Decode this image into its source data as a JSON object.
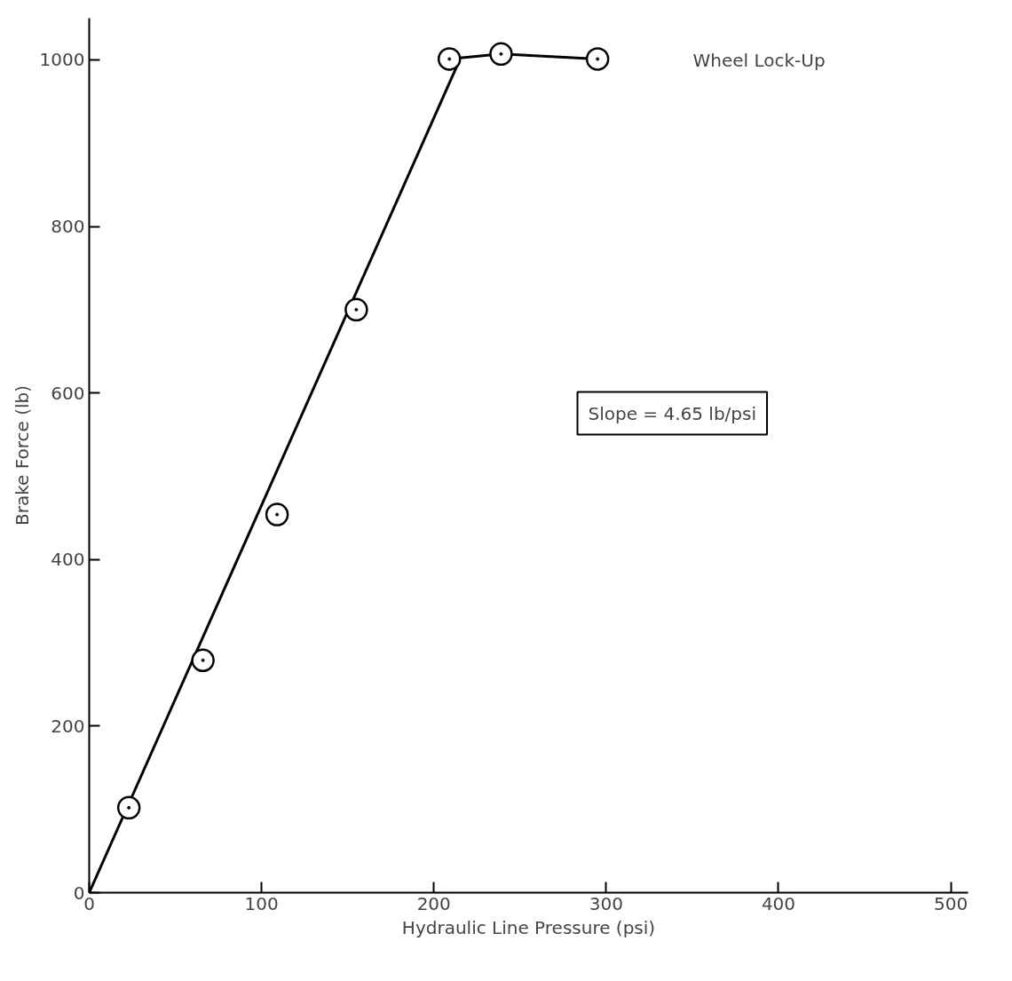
{
  "chart_data": {
    "type": "scatter",
    "xlabel": "Hydraulic Line Pressure (psi)",
    "ylabel": "Brake Force (lb)",
    "xlim": [
      0,
      510
    ],
    "ylim": [
      0,
      1050
    ],
    "xticks": [
      0,
      100,
      200,
      300,
      400,
      500
    ],
    "yticks": [
      0,
      200,
      400,
      600,
      800,
      1000
    ],
    "grid": false,
    "series": [
      {
        "type": "line",
        "color": "#000000",
        "x": [
          0,
          215
        ],
        "values": [
          0,
          1000
        ],
        "marker": "none",
        "line_style": "solid"
      },
      {
        "type": "line",
        "color": "#000000",
        "x": [
          209,
          239,
          295
        ],
        "values": [
          1001,
          1007,
          1001
        ],
        "marker": "none",
        "line_style": "solid"
      },
      {
        "color": "#000000",
        "x": [
          23,
          66,
          109,
          155,
          209,
          239,
          295
        ],
        "values": [
          102,
          279,
          454,
          700,
          1001,
          1007,
          1001
        ],
        "marker": "circle"
      }
    ],
    "annotations": [
      "Wheel Lock-Up",
      "Slope = 4.65 lb/psi"
    ]
  }
}
